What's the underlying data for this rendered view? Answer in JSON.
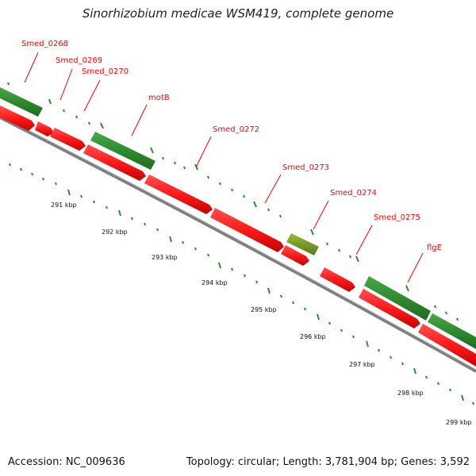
{
  "title": "Sinorhizobium medicae WSM419, complete genome",
  "footer": {
    "accession": "Accession: NC_009636",
    "info": "Topology: circular; Length: 3,781,904 bp; Genes: 3,592"
  },
  "colors": {
    "cds_forward": "#2e8b2e",
    "cds_forward_dark": "#1f6a1f",
    "cds_reverse": "#ff1a1a",
    "cds_reverse_dark": "#c40000",
    "cds_other": "#7a9a2a",
    "backbone": "#808080",
    "tick": "#2e8b2e",
    "label": "#ff0000"
  },
  "gene_labels": [
    "Smed_0268",
    "Smed_0269",
    "Smed_0270",
    "motB",
    "Smed_0272",
    "Smed_0273",
    "Smed_0274",
    "Smed_0275",
    "flgE"
  ],
  "ruler_labels": [
    "291 kbp",
    "292 kbp",
    "293 kbp",
    "294 kbp",
    "295 kbp",
    "296 kbp",
    "297 kbp",
    "298 kbp",
    "299 kbp"
  ]
}
